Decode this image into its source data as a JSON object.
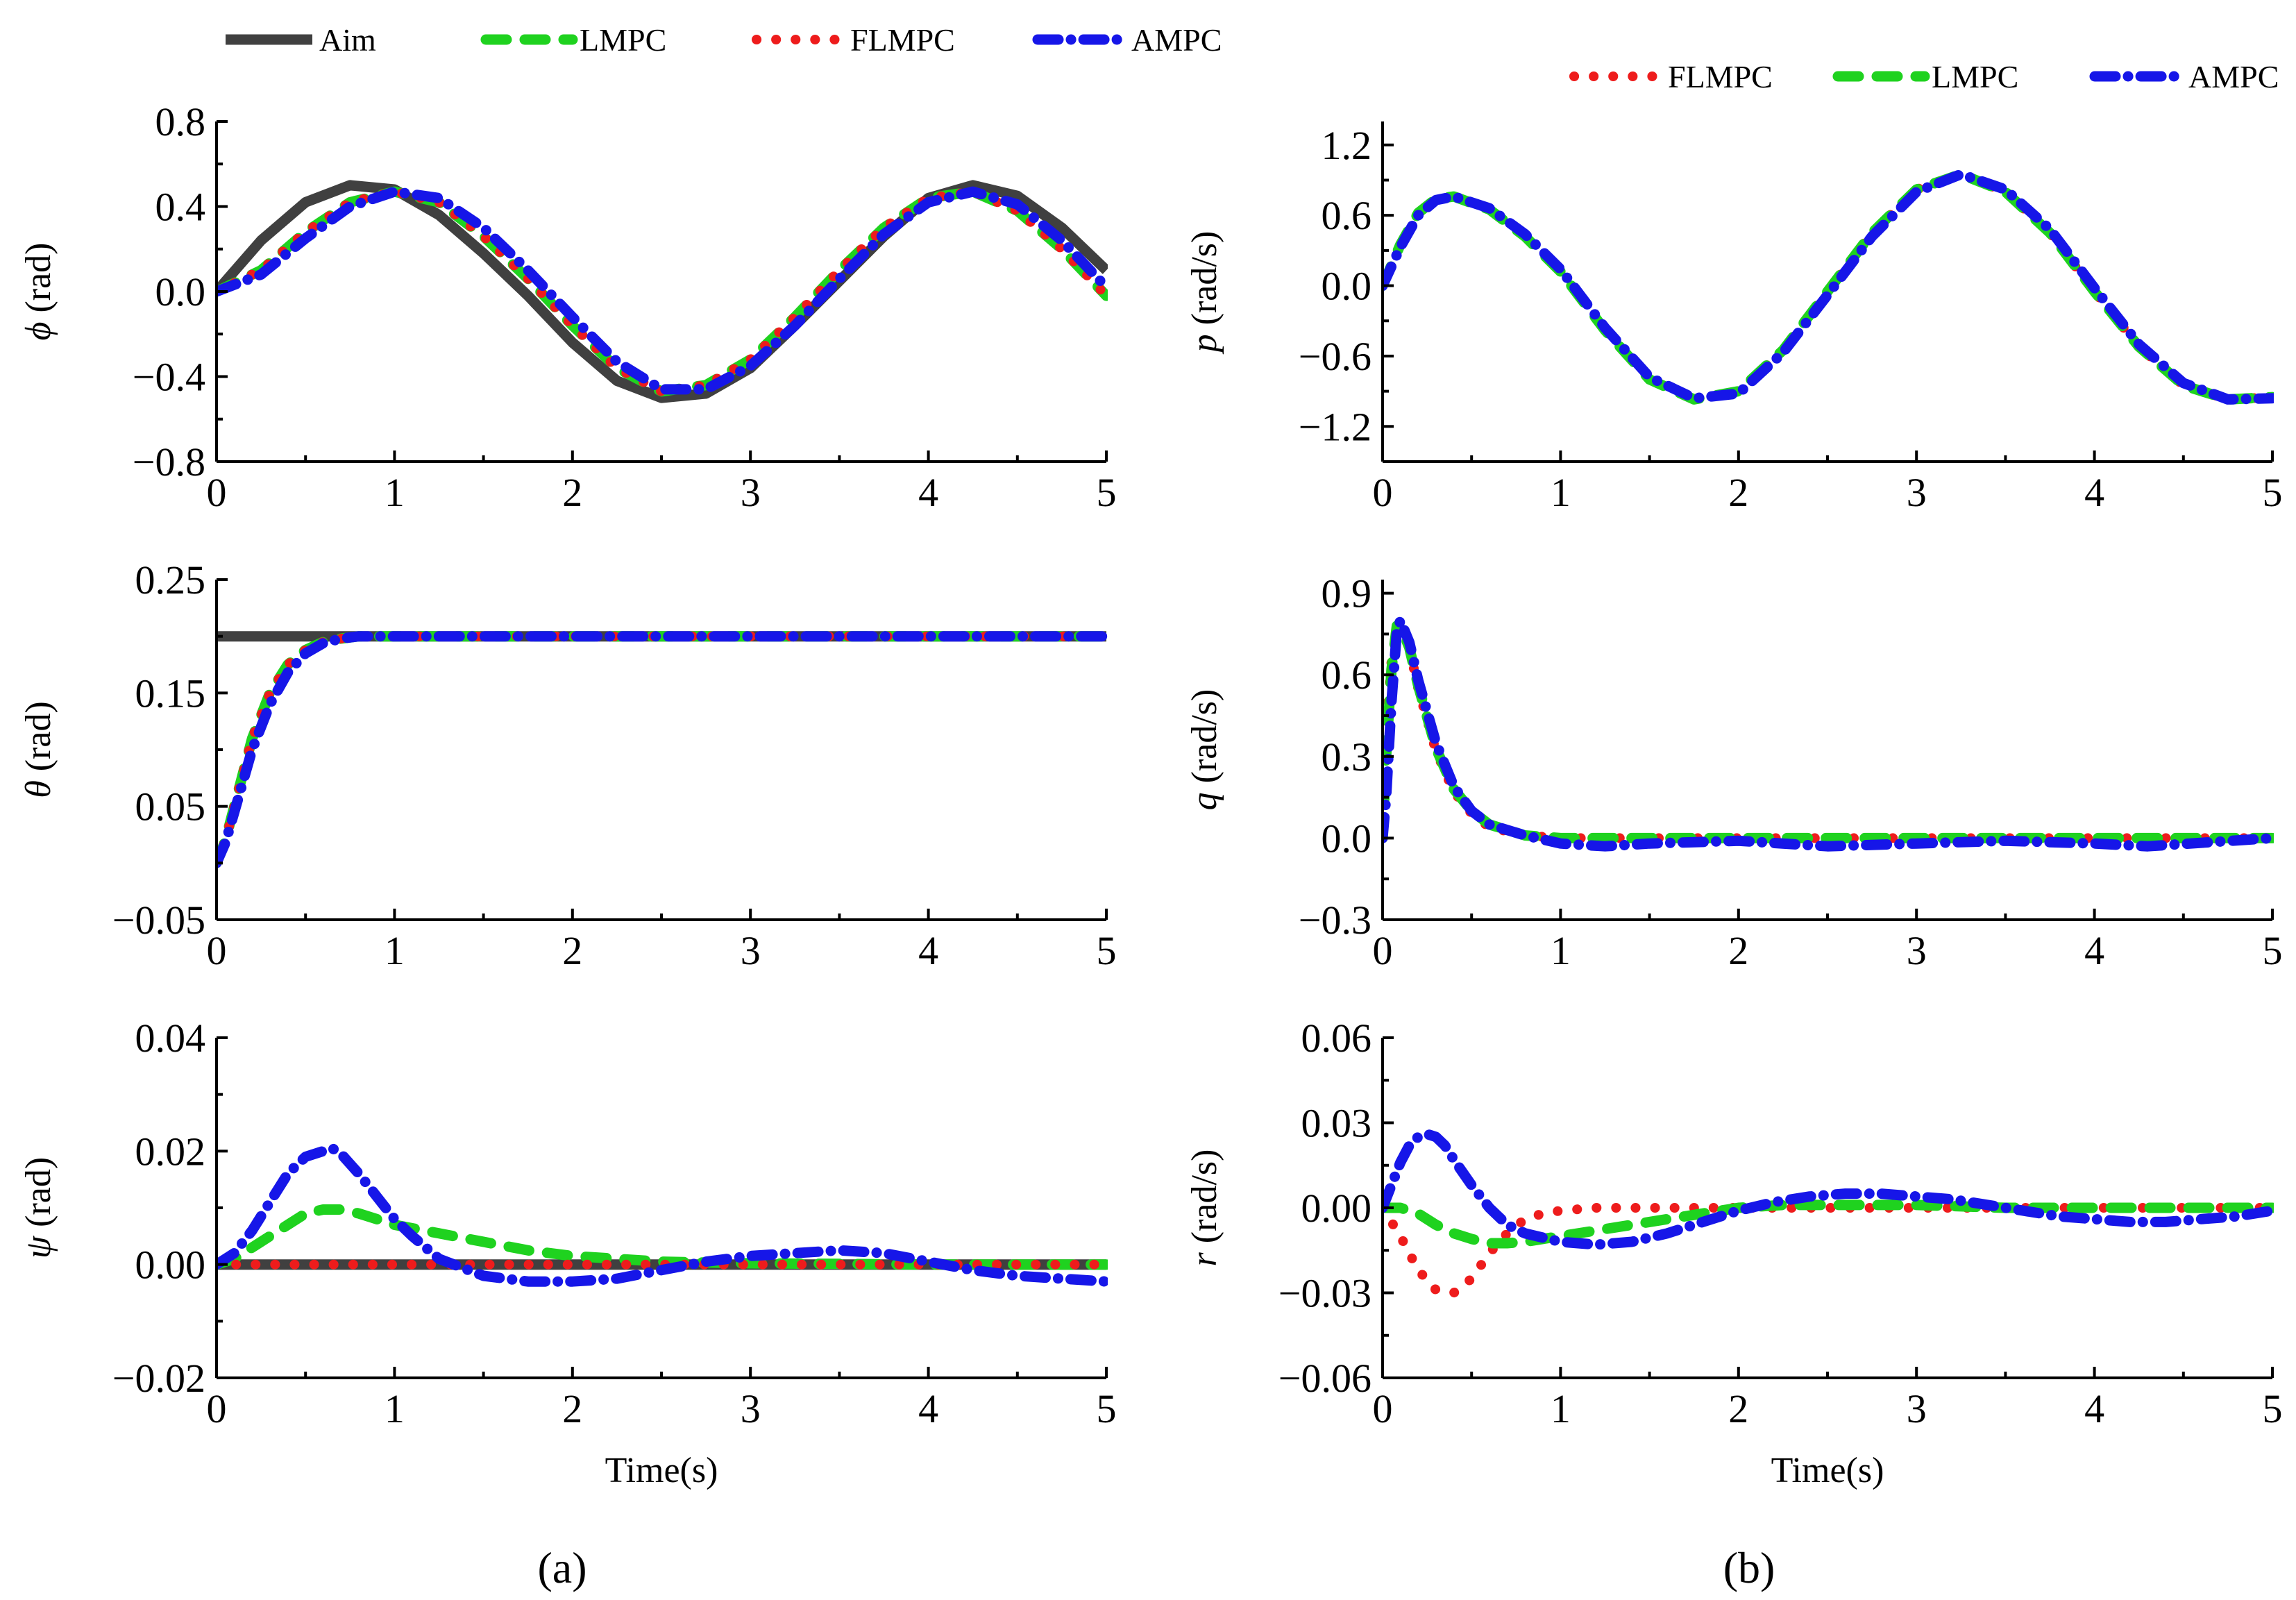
{
  "chart_data": [
    {
      "id": "phi",
      "type": "line",
      "panel": "a",
      "ylabel": "(rad)",
      "ysymbol": "ϕ",
      "xlabel": "",
      "xlim": [
        0,
        5
      ],
      "ylim": [
        -0.8,
        0.8
      ],
      "xticks": [
        "0",
        "1",
        "2",
        "3",
        "4",
        "5"
      ],
      "yticks": [
        "0.8",
        "0.4",
        "0.0",
        "−0.4",
        "−0.8"
      ],
      "series": [
        {
          "name": "Aim",
          "x": [
            0,
            0.25,
            0.5,
            0.75,
            1,
            1.25,
            1.5,
            1.75,
            2,
            2.25,
            2.5,
            2.75,
            3,
            3.25,
            3.5,
            3.75,
            4,
            4.25,
            4.5,
            4.75,
            5
          ],
          "y": [
            0,
            0.24,
            0.42,
            0.5,
            0.48,
            0.36,
            0.18,
            -0.02,
            -0.24,
            -0.42,
            -0.5,
            -0.48,
            -0.36,
            -0.16,
            0.05,
            0.26,
            0.44,
            0.5,
            0.45,
            0.3,
            0.1
          ]
        },
        {
          "name": "LMPC",
          "x": [
            0,
            0.25,
            0.5,
            0.75,
            1,
            1.25,
            1.5,
            1.75,
            2,
            2.25,
            2.5,
            2.75,
            3,
            3.25,
            3.5,
            3.75,
            4,
            4.25,
            4.5,
            4.75,
            5
          ],
          "y": [
            0,
            0.1,
            0.28,
            0.42,
            0.47,
            0.42,
            0.26,
            0.06,
            -0.16,
            -0.36,
            -0.47,
            -0.44,
            -0.32,
            -0.12,
            0.1,
            0.3,
            0.44,
            0.47,
            0.38,
            0.2,
            -0.02
          ]
        },
        {
          "name": "FLMPC",
          "x": [
            0,
            0.25,
            0.5,
            0.75,
            1,
            1.25,
            1.5,
            1.75,
            2,
            2.25,
            2.5,
            2.75,
            3,
            3.25,
            3.5,
            3.75,
            4,
            4.25,
            4.5,
            4.75,
            5
          ],
          "y": [
            0,
            0.1,
            0.28,
            0.42,
            0.47,
            0.42,
            0.26,
            0.06,
            -0.16,
            -0.36,
            -0.47,
            -0.44,
            -0.32,
            -0.12,
            0.1,
            0.3,
            0.44,
            0.47,
            0.38,
            0.2,
            -0.02
          ]
        },
        {
          "name": "AMPC",
          "x": [
            0,
            0.25,
            0.5,
            0.75,
            1,
            1.25,
            1.5,
            1.75,
            2,
            2.25,
            2.5,
            2.75,
            3,
            3.25,
            3.5,
            3.75,
            4,
            4.25,
            4.5,
            4.75,
            5
          ],
          "y": [
            0,
            0.08,
            0.25,
            0.4,
            0.47,
            0.44,
            0.3,
            0.1,
            -0.12,
            -0.33,
            -0.46,
            -0.46,
            -0.35,
            -0.16,
            0.06,
            0.27,
            0.42,
            0.47,
            0.41,
            0.24,
            0.02
          ]
        }
      ]
    },
    {
      "id": "p",
      "type": "line",
      "panel": "b",
      "ylabel": "(rad/s)",
      "ysymbol": "p",
      "xlabel": "",
      "xlim": [
        0,
        5
      ],
      "ylim": [
        -1.5,
        1.4
      ],
      "xticks": [
        "0",
        "1",
        "2",
        "3",
        "4",
        "5"
      ],
      "yticks": [
        "1.2",
        "0.6",
        "0.0",
        "−0.6",
        "−1.2"
      ],
      "series": [
        {
          "name": "FLMPC",
          "x": [
            0,
            0.1,
            0.2,
            0.3,
            0.4,
            0.6,
            0.8,
            1,
            1.25,
            1.5,
            1.75,
            2,
            2.25,
            2.5,
            2.75,
            3,
            3.25,
            3.5,
            3.75,
            4,
            4.25,
            4.5,
            4.75,
            5
          ],
          "y": [
            0,
            0.35,
            0.62,
            0.74,
            0.76,
            0.65,
            0.42,
            0.12,
            -0.38,
            -0.8,
            -0.97,
            -0.9,
            -0.55,
            -0.05,
            0.45,
            0.82,
            0.95,
            0.8,
            0.45,
            -0.05,
            -0.52,
            -0.85,
            -0.97,
            -0.95
          ]
        },
        {
          "name": "LMPC",
          "x": [
            0,
            0.1,
            0.2,
            0.3,
            0.4,
            0.6,
            0.8,
            1,
            1.25,
            1.5,
            1.75,
            2,
            2.25,
            2.5,
            2.75,
            3,
            3.25,
            3.5,
            3.75,
            4,
            4.25,
            4.5,
            4.75,
            5
          ],
          "y": [
            0,
            0.35,
            0.62,
            0.74,
            0.76,
            0.65,
            0.42,
            0.12,
            -0.38,
            -0.8,
            -0.97,
            -0.9,
            -0.55,
            -0.05,
            0.45,
            0.82,
            0.95,
            0.8,
            0.45,
            -0.05,
            -0.52,
            -0.85,
            -0.97,
            -0.95
          ]
        },
        {
          "name": "AMPC",
          "x": [
            0,
            0.1,
            0.2,
            0.3,
            0.4,
            0.6,
            0.8,
            1,
            1.25,
            1.5,
            1.75,
            2,
            2.25,
            2.5,
            2.75,
            3,
            3.25,
            3.5,
            3.75,
            4,
            4.25,
            4.5,
            4.75,
            5
          ],
          "y": [
            0,
            0.33,
            0.6,
            0.73,
            0.76,
            0.66,
            0.44,
            0.14,
            -0.36,
            -0.78,
            -0.96,
            -0.92,
            -0.57,
            -0.08,
            0.42,
            0.8,
            0.95,
            0.82,
            0.48,
            -0.02,
            -0.5,
            -0.83,
            -0.97,
            -0.96
          ]
        }
      ]
    },
    {
      "id": "theta",
      "type": "line",
      "panel": "a",
      "ylabel": "(rad)",
      "ysymbol": "θ",
      "xlabel": "",
      "xlim": [
        0,
        5
      ],
      "ylim": [
        -0.05,
        0.25
      ],
      "xticks": [
        "0",
        "1",
        "2",
        "3",
        "4",
        "5"
      ],
      "yticks": [
        "0.25",
        "0.15",
        "0.05",
        "−0.05"
      ],
      "series": [
        {
          "name": "Aim",
          "x": [
            0,
            5
          ],
          "y": [
            0.2,
            0.2
          ]
        },
        {
          "name": "LMPC",
          "x": [
            0,
            0.05,
            0.1,
            0.2,
            0.3,
            0.4,
            0.5,
            0.6,
            0.7,
            0.8,
            1,
            1.5,
            2,
            3,
            4,
            5
          ],
          "y": [
            0,
            0.02,
            0.05,
            0.11,
            0.15,
            0.175,
            0.188,
            0.195,
            0.198,
            0.2,
            0.2,
            0.2,
            0.2,
            0.2,
            0.2,
            0.2
          ]
        },
        {
          "name": "FLMPC",
          "x": [
            0,
            0.05,
            0.1,
            0.2,
            0.3,
            0.4,
            0.5,
            0.6,
            0.7,
            0.8,
            1,
            1.5,
            2,
            3,
            4,
            5
          ],
          "y": [
            0,
            0.02,
            0.05,
            0.11,
            0.15,
            0.175,
            0.188,
            0.195,
            0.198,
            0.2,
            0.2,
            0.2,
            0.2,
            0.2,
            0.2,
            0.2
          ]
        },
        {
          "name": "AMPC",
          "x": [
            0,
            0.05,
            0.1,
            0.2,
            0.3,
            0.4,
            0.5,
            0.6,
            0.7,
            0.8,
            1,
            1.5,
            2,
            3,
            4,
            5
          ],
          "y": [
            0,
            0.018,
            0.045,
            0.1,
            0.14,
            0.168,
            0.185,
            0.194,
            0.198,
            0.2,
            0.2,
            0.2,
            0.2,
            0.2,
            0.2,
            0.2
          ]
        }
      ]
    },
    {
      "id": "q",
      "type": "line",
      "panel": "b",
      "ylabel": "(rad/s)",
      "ysymbol": "q",
      "xlabel": "",
      "xlim": [
        0,
        5
      ],
      "ylim": [
        -0.3,
        0.95
      ],
      "xticks": [
        "0",
        "1",
        "2",
        "3",
        "4",
        "5"
      ],
      "yticks": [
        "0.9",
        "0.6",
        "0.3",
        "0.0",
        "−0.3"
      ],
      "series": [
        {
          "name": "FLMPC",
          "x": [
            0,
            0.02,
            0.05,
            0.08,
            0.1,
            0.15,
            0.2,
            0.3,
            0.4,
            0.5,
            0.6,
            0.8,
            1,
            1.5,
            2,
            3,
            4,
            5
          ],
          "y": [
            0,
            0.4,
            0.65,
            0.75,
            0.77,
            0.7,
            0.55,
            0.32,
            0.17,
            0.09,
            0.04,
            0.01,
            0,
            0,
            0,
            0,
            0,
            0
          ]
        },
        {
          "name": "LMPC",
          "x": [
            0,
            0.02,
            0.05,
            0.08,
            0.1,
            0.15,
            0.2,
            0.3,
            0.4,
            0.5,
            0.6,
            0.8,
            1,
            1.5,
            2,
            3,
            4,
            5
          ],
          "y": [
            0,
            0.3,
            0.62,
            0.78,
            0.78,
            0.7,
            0.56,
            0.33,
            0.18,
            0.1,
            0.05,
            0.01,
            0,
            0,
            0,
            0,
            0,
            0
          ]
        },
        {
          "name": "AMPC",
          "x": [
            0,
            0.02,
            0.05,
            0.08,
            0.1,
            0.15,
            0.2,
            0.3,
            0.4,
            0.5,
            0.6,
            0.8,
            1,
            1.25,
            1.5,
            2,
            2.5,
            3,
            3.5,
            4,
            4.3,
            5
          ],
          "y": [
            0,
            0.15,
            0.5,
            0.76,
            0.8,
            0.72,
            0.58,
            0.35,
            0.19,
            0.1,
            0.05,
            0.01,
            -0.02,
            -0.03,
            -0.02,
            -0.01,
            -0.03,
            -0.02,
            -0.01,
            -0.02,
            -0.03,
            0
          ]
        }
      ]
    },
    {
      "id": "psi",
      "type": "line",
      "panel": "a",
      "ylabel": "(rad)",
      "ysymbol": "ψ",
      "xlabel": "Time(s)",
      "xlim": [
        0,
        5
      ],
      "ylim": [
        -0.02,
        0.04
      ],
      "xticks": [
        "0",
        "1",
        "2",
        "3",
        "4",
        "5"
      ],
      "yticks": [
        "0.04",
        "0.02",
        "0.00",
        "−0.02"
      ],
      "series": [
        {
          "name": "Aim",
          "x": [
            0,
            5
          ],
          "y": [
            0,
            0
          ]
        },
        {
          "name": "LMPC",
          "x": [
            0,
            0.1,
            0.2,
            0.3,
            0.4,
            0.5,
            0.6,
            0.7,
            0.8,
            0.9,
            1,
            1.25,
            1.5,
            1.75,
            2,
            2.5,
            3,
            3.5,
            4,
            4.5,
            5
          ],
          "y": [
            0,
            0.001,
            0.003,
            0.005,
            0.007,
            0.009,
            0.0097,
            0.0097,
            0.009,
            0.008,
            0.007,
            0.0055,
            0.004,
            0.0025,
            0.0015,
            0.0005,
            0.0002,
            0.0001,
            0,
            0,
            0
          ]
        },
        {
          "name": "FLMPC",
          "x": [
            0,
            5
          ],
          "y": [
            0,
            0
          ]
        },
        {
          "name": "AMPC",
          "x": [
            0,
            0.1,
            0.2,
            0.3,
            0.4,
            0.5,
            0.6,
            0.65,
            0.7,
            0.8,
            0.9,
            1,
            1.1,
            1.25,
            1.5,
            1.75,
            2,
            2.25,
            2.5,
            2.75,
            3,
            3.25,
            3.5,
            3.75,
            4,
            4.25,
            4.5,
            4.75,
            5
          ],
          "y": [
            0,
            0.002,
            0.006,
            0.011,
            0.016,
            0.019,
            0.02,
            0.0205,
            0.0195,
            0.016,
            0.012,
            0.008,
            0.005,
            0.001,
            -0.002,
            -0.003,
            -0.003,
            -0.0025,
            -0.001,
            0.0005,
            0.0015,
            0.002,
            0.0025,
            0.002,
            0.0005,
            -0.001,
            -0.002,
            -0.0025,
            -0.003
          ]
        }
      ]
    },
    {
      "id": "r",
      "type": "line",
      "panel": "b",
      "ylabel": "(rad/s)",
      "ysymbol": "r",
      "xlabel": "Time(s)",
      "xlim": [
        0,
        5
      ],
      "ylim": [
        -0.06,
        0.06
      ],
      "xticks": [
        "0",
        "1",
        "2",
        "3",
        "4",
        "5"
      ],
      "yticks": [
        "0.06",
        "0.03",
        "0.00",
        "−0.03",
        "−0.06"
      ],
      "series": [
        {
          "name": "FLMPC",
          "x": [
            0,
            0.1,
            0.2,
            0.3,
            0.4,
            0.5,
            0.6,
            0.7,
            0.8,
            0.9,
            1,
            1.2,
            1.5,
            2,
            3,
            4,
            5
          ],
          "y": [
            0,
            -0.01,
            -0.022,
            -0.029,
            -0.03,
            -0.025,
            -0.016,
            -0.009,
            -0.004,
            -0.002,
            -0.001,
            0,
            0,
            0,
            0,
            0,
            0
          ]
        },
        {
          "name": "LMPC",
          "x": [
            0,
            0.1,
            0.2,
            0.3,
            0.4,
            0.5,
            0.6,
            0.7,
            0.8,
            1,
            1.2,
            1.4,
            1.6,
            1.8,
            2,
            2.25,
            2.5,
            2.75,
            3,
            3.5,
            4,
            4.5,
            5
          ],
          "y": [
            0,
            0,
            -0.002,
            -0.006,
            -0.009,
            -0.011,
            -0.0125,
            -0.0125,
            -0.012,
            -0.01,
            -0.008,
            -0.006,
            -0.004,
            -0.002,
            0,
            0.001,
            0.001,
            0.001,
            0.001,
            0,
            0,
            0,
            0
          ]
        },
        {
          "name": "AMPC",
          "x": [
            0,
            0.05,
            0.1,
            0.15,
            0.2,
            0.25,
            0.3,
            0.35,
            0.4,
            0.5,
            0.6,
            0.7,
            0.8,
            1,
            1.2,
            1.4,
            1.6,
            1.8,
            2,
            2.2,
            2.4,
            2.6,
            2.8,
            3,
            3.2,
            3.4,
            3.6,
            3.8,
            4,
            4.2,
            4.4,
            4.6,
            4.8,
            5
          ],
          "y": [
            0,
            0.008,
            0.016,
            0.022,
            0.025,
            0.026,
            0.025,
            0.022,
            0.017,
            0.008,
            0,
            -0.006,
            -0.009,
            -0.012,
            -0.013,
            -0.012,
            -0.009,
            -0.005,
            -0.001,
            0.002,
            0.004,
            0.005,
            0.005,
            0.004,
            0.003,
            0.001,
            -0.001,
            -0.003,
            -0.004,
            -0.005,
            -0.005,
            -0.004,
            -0.003,
            -0.001
          ]
        }
      ]
    }
  ],
  "legends": {
    "a": [
      "Aim",
      "LMPC",
      "FLMPC",
      "AMPC"
    ],
    "b": [
      "FLMPC",
      "LMPC",
      "AMPC"
    ]
  },
  "captions": {
    "a": "(a)",
    "b": "(b)"
  },
  "colors": {
    "Aim": "#404040",
    "LMPC": "#1fd21f",
    "FLMPC": "#ee1c1c",
    "AMPC": "#1616e8"
  }
}
